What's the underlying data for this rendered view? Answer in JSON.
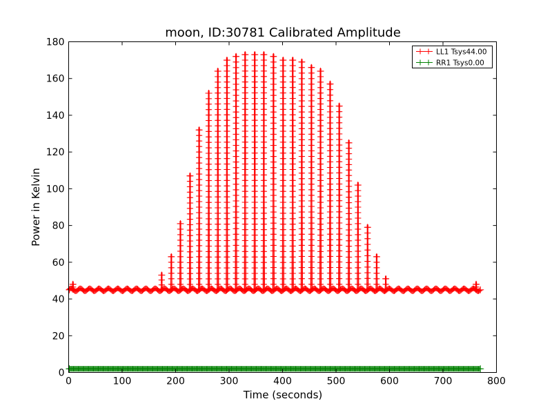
{
  "chart_data": {
    "type": "line",
    "title": "moon, ID:30781 Calibrated Amplitude",
    "xlabel": "Time (seconds)",
    "ylabel": "Power in Kelvin",
    "xlim": [
      0,
      800
    ],
    "ylim": [
      0,
      180
    ],
    "x_ticks": [
      "0",
      "100",
      "200",
      "300",
      "400",
      "500",
      "600",
      "700",
      "800"
    ],
    "y_ticks": [
      "0",
      "20",
      "40",
      "60",
      "80",
      "100",
      "120",
      "140",
      "160",
      "180"
    ],
    "grid": false,
    "legend_position": "top-right",
    "marker": "+",
    "series": [
      {
        "name": "LL1 Tsys44.00",
        "color": "#ff0000",
        "baseline": 45,
        "x_range": [
          0,
          770
        ],
        "peaks": [
          {
            "x": 8,
            "y": 48
          },
          {
            "x": 174,
            "y": 53
          },
          {
            "x": 192,
            "y": 63
          },
          {
            "x": 209,
            "y": 81
          },
          {
            "x": 227,
            "y": 107
          },
          {
            "x": 244,
            "y": 132
          },
          {
            "x": 262,
            "y": 152
          },
          {
            "x": 279,
            "y": 164
          },
          {
            "x": 296,
            "y": 170
          },
          {
            "x": 313,
            "y": 172
          },
          {
            "x": 330,
            "y": 173
          },
          {
            "x": 348,
            "y": 173
          },
          {
            "x": 365,
            "y": 173
          },
          {
            "x": 383,
            "y": 172
          },
          {
            "x": 401,
            "y": 170
          },
          {
            "x": 419,
            "y": 170
          },
          {
            "x": 436,
            "y": 169
          },
          {
            "x": 454,
            "y": 166
          },
          {
            "x": 471,
            "y": 164
          },
          {
            "x": 489,
            "y": 157
          },
          {
            "x": 506,
            "y": 145
          },
          {
            "x": 524,
            "y": 125
          },
          {
            "x": 541,
            "y": 102
          },
          {
            "x": 559,
            "y": 79
          },
          {
            "x": 576,
            "y": 63
          },
          {
            "x": 593,
            "y": 51
          },
          {
            "x": 762,
            "y": 48
          }
        ]
      },
      {
        "name": "RR1 Tsys0.00",
        "color": "#008000",
        "baseline": 2,
        "x_range": [
          0,
          770
        ],
        "peaks": []
      }
    ]
  }
}
